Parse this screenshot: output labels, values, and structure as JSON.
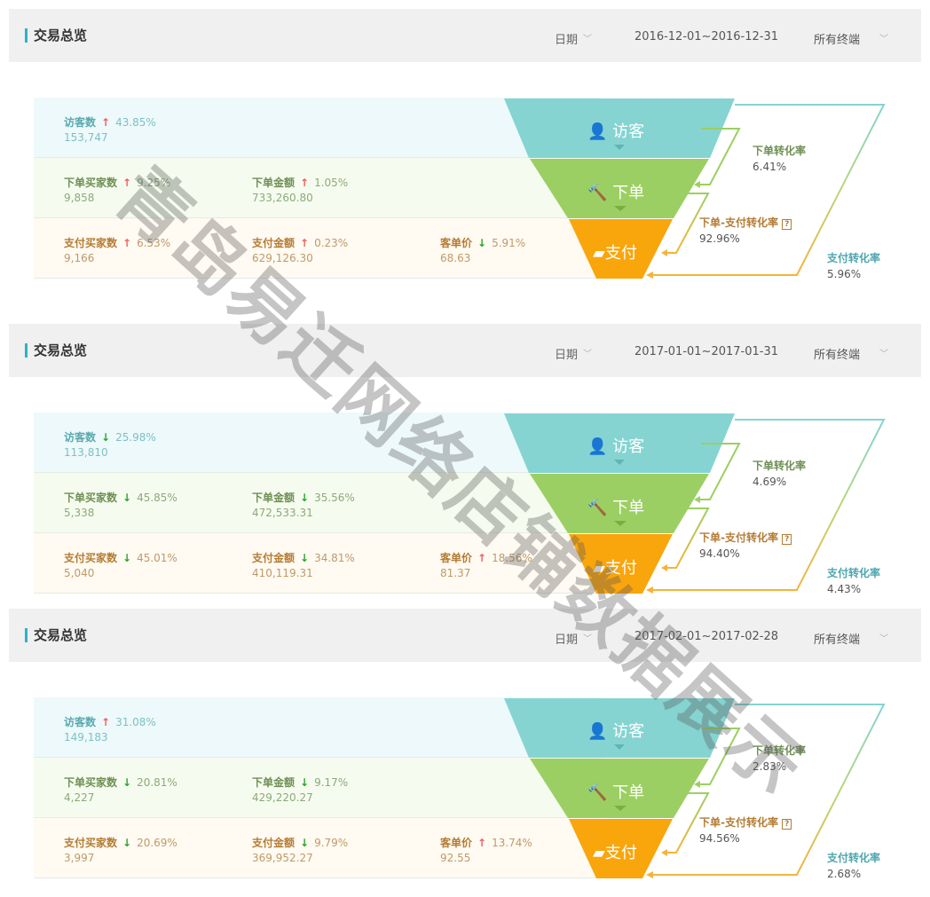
{
  "watermark": "青岛易迁网络店铺数据展示",
  "colors": {
    "visitor": "#85d4d2",
    "order": "#9ccf63",
    "pay": "#f9a50c",
    "accent": "#2fb2c4",
    "up": "#f06060",
    "down": "#2aa52a"
  },
  "panels": [
    {
      "title": "交易总览",
      "date_label": "日期",
      "date_range": "2016-12-01~2016-12-31",
      "terminal": "所有终端",
      "metrics": {
        "visitors": {
          "label": "访客数",
          "dir": "up",
          "pct": "43.85%",
          "value": "153,747"
        },
        "order_buyers": {
          "label": "下单买家数",
          "dir": "up",
          "pct": "9.25%",
          "value": "9,858"
        },
        "order_amount": {
          "label": "下单金额",
          "dir": "up",
          "pct": "1.05%",
          "value": "733,260.80"
        },
        "pay_buyers": {
          "label": "支付买家数",
          "dir": "up",
          "pct": "6.53%",
          "value": "9,166"
        },
        "pay_amount": {
          "label": "支付金额",
          "dir": "up",
          "pct": "0.23%",
          "value": "629,126.30"
        },
        "avg_price": {
          "label": "客单价",
          "dir": "down",
          "pct": "5.91%",
          "value": "68.63"
        }
      },
      "funnel": {
        "visitor": "访客",
        "order": "下单",
        "pay": "支付"
      },
      "rates": {
        "order_rate_label": "下单转化率",
        "order_rate": "6.41%",
        "order_pay_label": "下单-支付转化率",
        "order_pay_rate": "92.96%",
        "pay_rate_label": "支付转化率",
        "pay_rate": "5.96%"
      }
    },
    {
      "title": "交易总览",
      "date_label": "日期",
      "date_range": "2017-01-01~2017-01-31",
      "terminal": "所有终端",
      "metrics": {
        "visitors": {
          "label": "访客数",
          "dir": "down",
          "pct": "25.98%",
          "value": "113,810"
        },
        "order_buyers": {
          "label": "下单买家数",
          "dir": "down",
          "pct": "45.85%",
          "value": "5,338"
        },
        "order_amount": {
          "label": "下单金额",
          "dir": "down",
          "pct": "35.56%",
          "value": "472,533.31"
        },
        "pay_buyers": {
          "label": "支付买家数",
          "dir": "down",
          "pct": "45.01%",
          "value": "5,040"
        },
        "pay_amount": {
          "label": "支付金额",
          "dir": "down",
          "pct": "34.81%",
          "value": "410,119.31"
        },
        "avg_price": {
          "label": "客单价",
          "dir": "up",
          "pct": "18.56%",
          "value": "81.37"
        }
      },
      "funnel": {
        "visitor": "访客",
        "order": "下单",
        "pay": "支付"
      },
      "rates": {
        "order_rate_label": "下单转化率",
        "order_rate": "4.69%",
        "order_pay_label": "下单-支付转化率",
        "order_pay_rate": "94.40%",
        "pay_rate_label": "支付转化率",
        "pay_rate": "4.43%"
      }
    },
    {
      "title": "交易总览",
      "date_label": "日期",
      "date_range": "2017-02-01~2017-02-28",
      "terminal": "所有终端",
      "metrics": {
        "visitors": {
          "label": "访客数",
          "dir": "up",
          "pct": "31.08%",
          "value": "149,183"
        },
        "order_buyers": {
          "label": "下单买家数",
          "dir": "down",
          "pct": "20.81%",
          "value": "4,227"
        },
        "order_amount": {
          "label": "下单金额",
          "dir": "down",
          "pct": "9.17%",
          "value": "429,220.27"
        },
        "pay_buyers": {
          "label": "支付买家数",
          "dir": "down",
          "pct": "20.69%",
          "value": "3,997"
        },
        "pay_amount": {
          "label": "支付金额",
          "dir": "down",
          "pct": "9.79%",
          "value": "369,952.27"
        },
        "avg_price": {
          "label": "客单价",
          "dir": "up",
          "pct": "13.74%",
          "value": "92.55"
        }
      },
      "funnel": {
        "visitor": "访客",
        "order": "下单",
        "pay": "支付"
      },
      "rates": {
        "order_rate_label": "下单转化率",
        "order_rate": "2.83%",
        "order_pay_label": "下单-支付转化率",
        "order_pay_rate": "94.56%",
        "pay_rate_label": "支付转化率",
        "pay_rate": "2.68%"
      }
    }
  ]
}
